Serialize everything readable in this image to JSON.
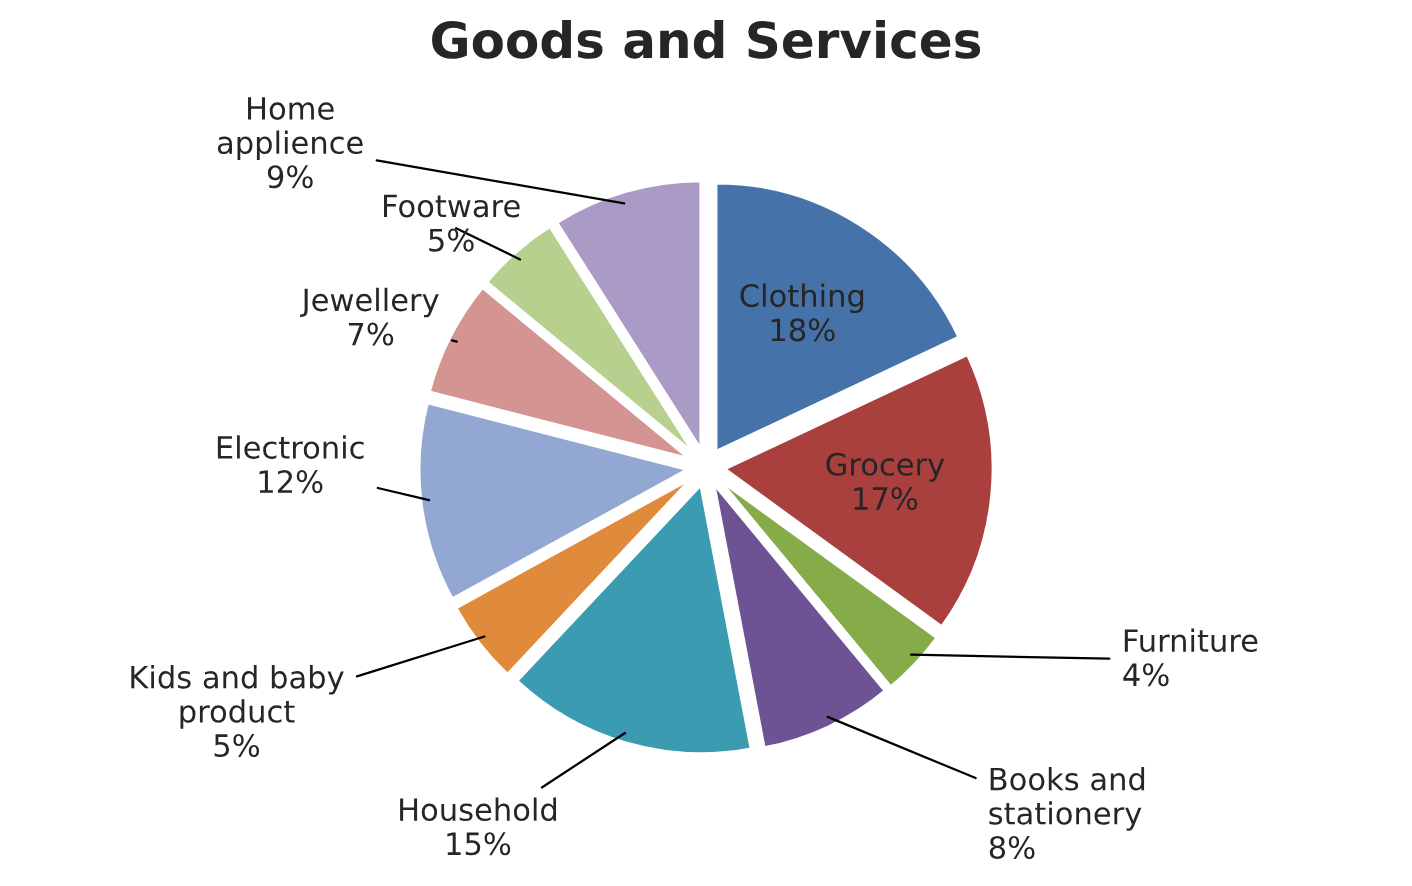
{
  "chart_data": {
    "type": "pie",
    "title": "Goods and Services",
    "categories": [
      "Clothing",
      "Grocery",
      "Furniture",
      "Books and stationery",
      "Household",
      "Kids and baby product",
      "Electronic",
      "Jewellery",
      "Footware",
      "Home applience"
    ],
    "values": [
      18,
      17,
      4,
      8,
      15,
      5,
      12,
      7,
      5,
      9
    ],
    "colors": [
      "#4672aa",
      "#a9403e",
      "#86ab49",
      "#6e5394",
      "#3b9bb1",
      "#e08a3b",
      "#92a8d3",
      "#d49492",
      "#b7d08d",
      "#a99bc6"
    ],
    "value_labels": [
      "18%",
      "17%",
      "4%",
      "8%",
      "15%",
      "5%",
      "12%",
      "7%",
      "5%",
      "9%"
    ],
    "legend": false
  }
}
